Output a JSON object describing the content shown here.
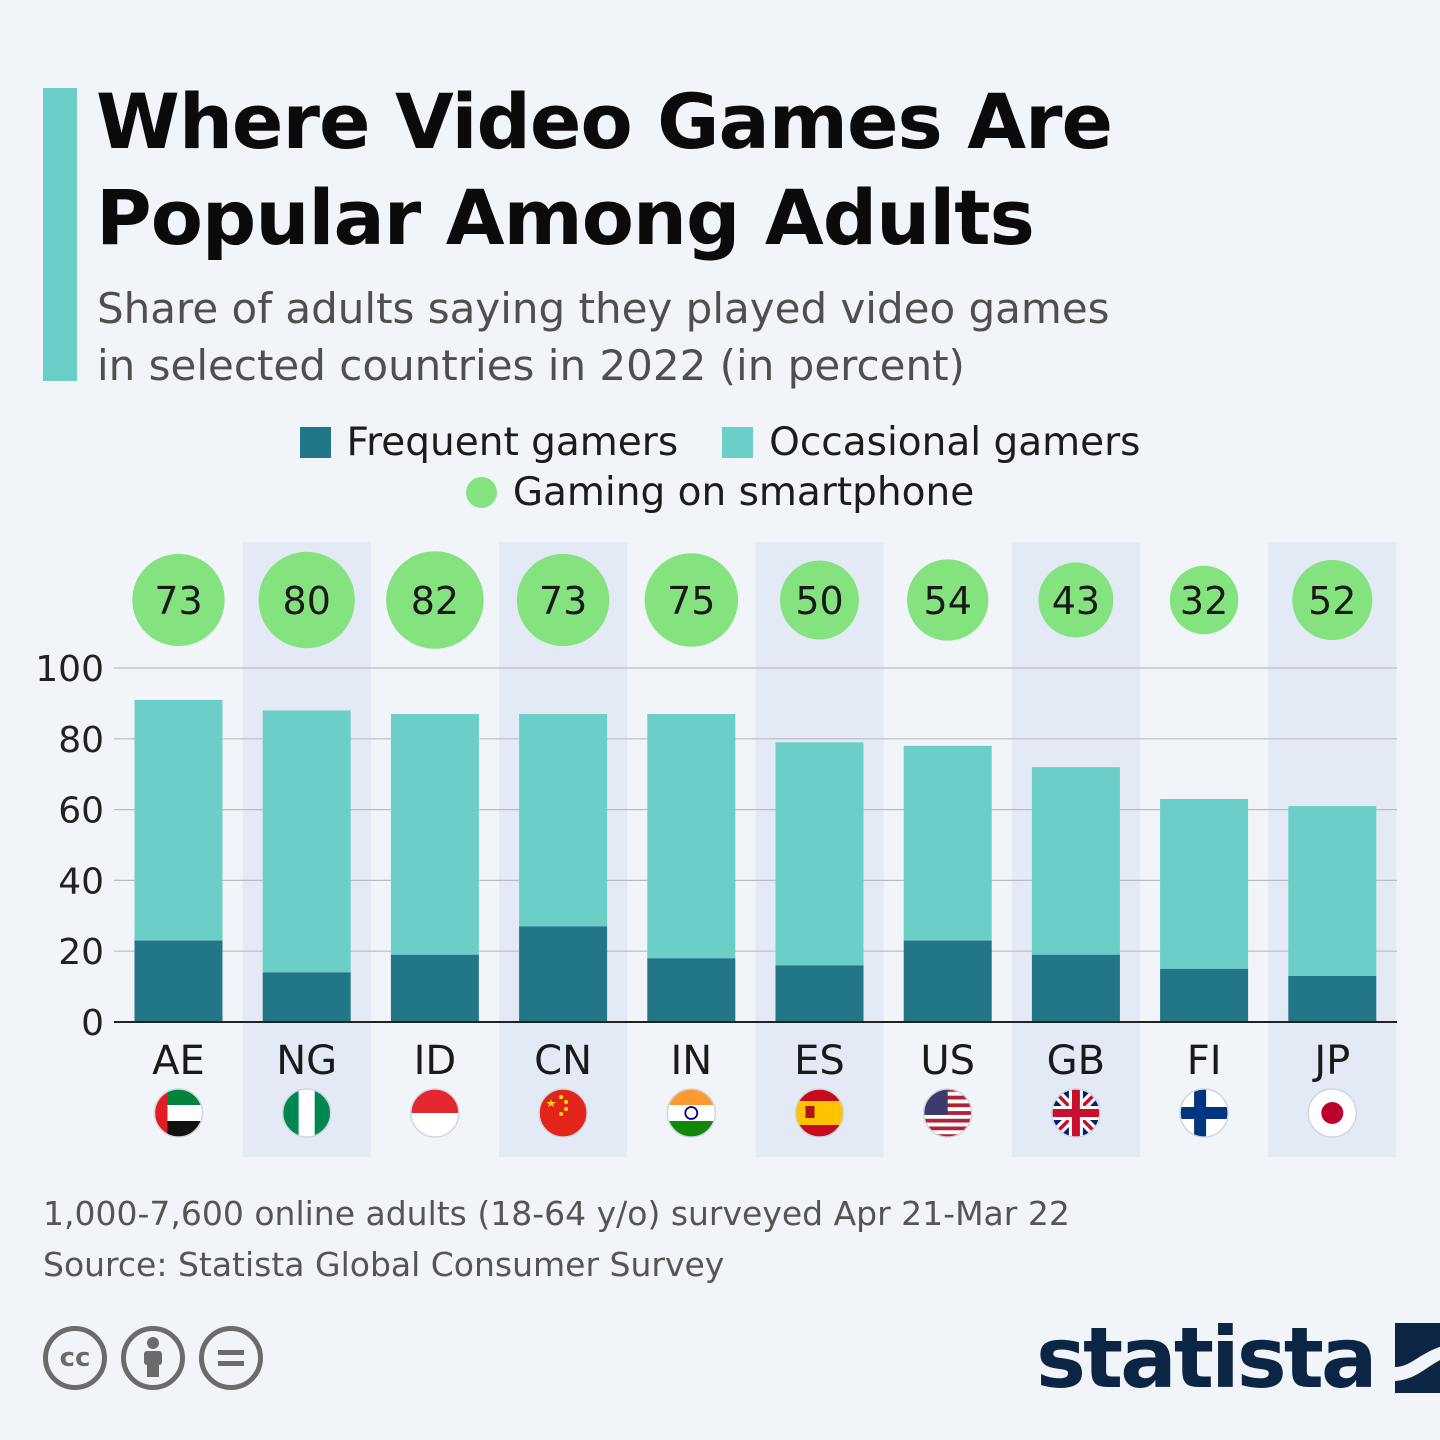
{
  "title_lines": [
    "Where Video Games Are",
    "Popular Among Adults"
  ],
  "subtitle_lines": [
    "Share of adults saying they played video games",
    "in selected countries in 2022 (in percent)"
  ],
  "legend": {
    "frequent": "Frequent gamers",
    "occasional": "Occasional gamers",
    "smartphone": "Gaming on smartphone"
  },
  "colors": {
    "frequent": "#217687",
    "occasional": "#6bcfc8",
    "smartphone": "#84e37f",
    "band": "#e4eaf5",
    "grid": "#b8bcc3",
    "accent": "#6bcfc8",
    "brand": "#0d2545"
  },
  "chart_data": {
    "type": "bar",
    "stacked": true,
    "categories": [
      "AE",
      "NG",
      "ID",
      "CN",
      "IN",
      "ES",
      "US",
      "GB",
      "FI",
      "JP"
    ],
    "series": [
      {
        "name": "Frequent gamers",
        "values": [
          23,
          14,
          19,
          27,
          18,
          16,
          23,
          19,
          15,
          13
        ]
      },
      {
        "name": "Occasional gamers",
        "values": [
          68,
          74,
          68,
          60,
          69,
          63,
          55,
          53,
          48,
          48
        ]
      }
    ],
    "smartphone": {
      "name": "Gaming on smartphone",
      "values": [
        73,
        80,
        82,
        73,
        75,
        50,
        54,
        43,
        32,
        52
      ]
    },
    "ylim": [
      0,
      100
    ],
    "yticks": [
      0,
      20,
      40,
      60,
      80,
      100
    ],
    "grid": true,
    "legend_position": "top-center",
    "flags": [
      "flag-ae-icon",
      "flag-ng-icon",
      "flag-id-icon",
      "flag-cn-icon",
      "flag-in-icon",
      "flag-es-icon",
      "flag-us-icon",
      "flag-gb-icon",
      "flag-fi-icon",
      "flag-jp-icon"
    ]
  },
  "footnote_lines": [
    "1,000-7,600 online adults (18-64 y/o) surveyed Apr 21-Mar 22",
    "Source: Statista Global Consumer Survey"
  ],
  "cc_icons": {
    "cc": "cc",
    "by": "i",
    "nd": "="
  },
  "brand": "statista"
}
